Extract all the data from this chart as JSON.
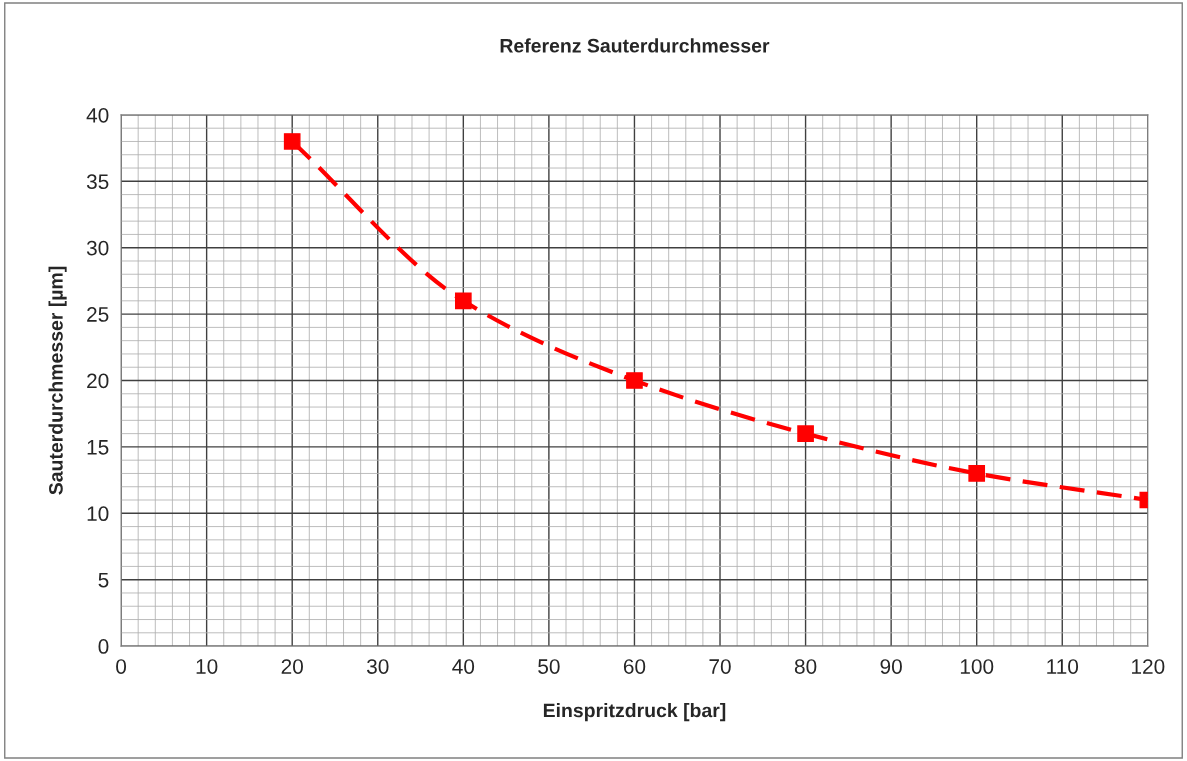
{
  "chart_data": {
    "type": "line",
    "title": "Referenz Sauterdurchmesser",
    "xlabel": "Einspritzdruck [bar]",
    "ylabel": "Sauterdurchmesser [µm]",
    "x": [
      20,
      40,
      60,
      80,
      100,
      120
    ],
    "series": [
      {
        "color": "#ff0000",
        "values": [
          38,
          26,
          20,
          16,
          13,
          11
        ]
      }
    ],
    "xlim": [
      0,
      120
    ],
    "xticks": [
      0,
      10,
      20,
      30,
      40,
      50,
      60,
      70,
      80,
      90,
      100,
      110,
      120
    ],
    "ylim": [
      0,
      40
    ],
    "yticks": [
      0,
      5,
      10,
      15,
      20,
      25,
      30,
      35,
      40
    ],
    "grid": true,
    "marker": "square",
    "line_style": "dashed",
    "legend": false
  }
}
